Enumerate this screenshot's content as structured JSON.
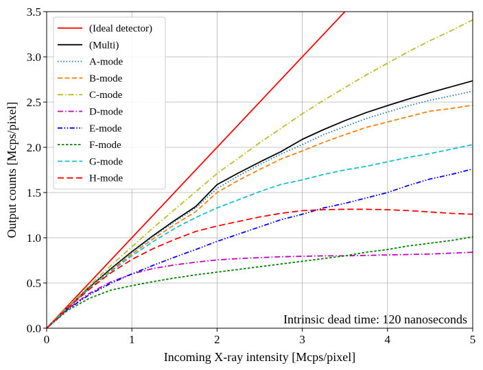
{
  "chart_data": {
    "type": "line",
    "xlabel": "Incoming X-ray intensity [Mcps/pixel]",
    "ylabel": "Output counts [Mcps/pixel]",
    "xlim": [
      0,
      5
    ],
    "ylim": [
      0,
      3.5
    ],
    "xticks": [
      0,
      1,
      2,
      3,
      4,
      5
    ],
    "yticks": [
      0.0,
      0.5,
      1.0,
      1.5,
      2.0,
      2.5,
      3.0,
      3.5
    ],
    "xtick_labels": [
      "0",
      "1",
      "2",
      "3",
      "4",
      "5"
    ],
    "ytick_labels": [
      "0.0",
      "0.5",
      "1.0",
      "1.5",
      "2.0",
      "2.5",
      "3.0",
      "3.5"
    ],
    "grid": true,
    "legend_position": "top-left",
    "annotation": "Intrinsic dead time: 120 nanoseconds",
    "x": [
      0,
      0.25,
      0.5,
      0.75,
      1,
      1.25,
      1.5,
      1.75,
      2,
      2.25,
      2.5,
      2.75,
      3,
      3.25,
      3.5,
      3.75,
      4,
      4.25,
      4.5,
      4.75,
      5
    ],
    "series": [
      {
        "name": "(Ideal detector)",
        "color": "#ff0000",
        "dash": "solid",
        "x": [
          0,
          3.5
        ],
        "values": [
          0,
          3.5
        ]
      },
      {
        "name": "(Multi)",
        "color": "#000000",
        "dash": "solid",
        "values": [
          0,
          0.233,
          0.451,
          0.655,
          0.846,
          1.024,
          1.19,
          1.346,
          1.588,
          1.716,
          1.837,
          1.952,
          2.088,
          2.196,
          2.295,
          2.384,
          2.461,
          2.535,
          2.605,
          2.67,
          2.735
        ]
      },
      {
        "name": "A-mode",
        "color": "#1f77b4",
        "dash": "dotted",
        "values": [
          0,
          0.232,
          0.448,
          0.65,
          0.838,
          1.013,
          1.177,
          1.33,
          1.545,
          1.684,
          1.81,
          1.926,
          2.03,
          2.14,
          2.23,
          2.318,
          2.39,
          2.46,
          2.52,
          2.57,
          2.62
        ]
      },
      {
        "name": "B-mode",
        "color": "#ff7f0e",
        "dash": "dashed",
        "values": [
          0,
          0.23,
          0.442,
          0.638,
          0.82,
          0.988,
          1.144,
          1.289,
          1.5,
          1.635,
          1.755,
          1.87,
          1.96,
          2.055,
          2.14,
          2.22,
          2.28,
          2.34,
          2.4,
          2.43,
          2.465
        ]
      },
      {
        "name": "C-mode",
        "color": "#bcbd22",
        "dash": "dashdot",
        "values": [
          0,
          0.24,
          0.47,
          0.69,
          0.9,
          1.11,
          1.31,
          1.51,
          1.71,
          1.88,
          2.05,
          2.21,
          2.37,
          2.52,
          2.66,
          2.8,
          2.93,
          3.06,
          3.18,
          3.29,
          3.41
        ]
      },
      {
        "name": "D-mode",
        "color": "#bf00bf",
        "dash": "dashdot",
        "values": [
          0,
          0.215,
          0.385,
          0.51,
          0.6,
          0.66,
          0.7,
          0.73,
          0.755,
          0.77,
          0.78,
          0.79,
          0.795,
          0.8,
          0.8,
          0.805,
          0.81,
          0.815,
          0.82,
          0.83,
          0.84
        ]
      },
      {
        "name": "E-mode",
        "color": "#0000ff",
        "dash": "dashdotdot",
        "values": [
          0,
          0.21,
          0.37,
          0.495,
          0.6,
          0.695,
          0.785,
          0.87,
          0.96,
          1.04,
          1.12,
          1.2,
          1.26,
          1.33,
          1.38,
          1.44,
          1.5,
          1.58,
          1.65,
          1.7,
          1.76
        ]
      },
      {
        "name": "F-mode",
        "color": "#008000",
        "dash": "densedash",
        "values": [
          0,
          0.2,
          0.33,
          0.42,
          0.47,
          0.515,
          0.555,
          0.59,
          0.62,
          0.65,
          0.68,
          0.71,
          0.74,
          0.77,
          0.8,
          0.84,
          0.87,
          0.91,
          0.94,
          0.97,
          1.01
        ]
      },
      {
        "name": "G-mode",
        "color": "#17becf",
        "dash": "dashed",
        "values": [
          0,
          0.228,
          0.436,
          0.625,
          0.8,
          0.958,
          1.102,
          1.224,
          1.33,
          1.42,
          1.51,
          1.59,
          1.64,
          1.7,
          1.75,
          1.79,
          1.84,
          1.89,
          1.93,
          1.98,
          2.03
        ]
      },
      {
        "name": "H-mode",
        "color": "#ff0000",
        "dash": "longdash",
        "values": [
          0,
          0.225,
          0.43,
          0.61,
          0.76,
          0.88,
          0.98,
          1.07,
          1.13,
          1.18,
          1.23,
          1.27,
          1.3,
          1.31,
          1.315,
          1.315,
          1.31,
          1.3,
          1.285,
          1.27,
          1.26
        ]
      }
    ]
  }
}
